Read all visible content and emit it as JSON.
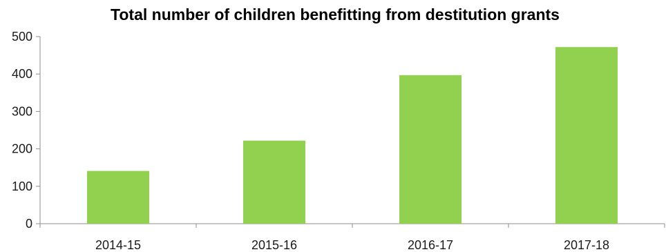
{
  "chart_data": {
    "type": "bar",
    "title": "Total number of children benefitting from destitution grants",
    "xlabel": "",
    "ylabel": "",
    "categories": [
      "2014-15",
      "2015-16",
      "2016-17",
      "2017-18"
    ],
    "values": [
      141,
      222,
      397,
      472
    ],
    "ylim": [
      0,
      500
    ],
    "yticks": [
      0,
      100,
      200,
      300,
      400,
      500
    ],
    "grid": false,
    "legend": "none",
    "bar_color": "#92d050"
  }
}
